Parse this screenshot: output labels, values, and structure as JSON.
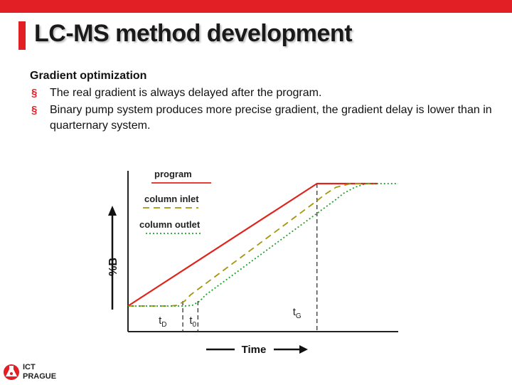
{
  "slide": {
    "title": "LC-MS method development",
    "heading": "Gradient optimization",
    "bullets": [
      "The real gradient is always delayed after the program.",
      "Binary pump system produces more precise gradient, the gradient delay is lower than in quarternary system."
    ],
    "accent_color": "#e31f26"
  },
  "logo": {
    "line1": "ICT",
    "line2": "PRAGUE",
    "icon": "flask-logo-icon"
  },
  "chart_data": {
    "type": "line",
    "title": "",
    "xlabel": "Time",
    "ylabel": "%B",
    "ylim": [
      0,
      100
    ],
    "markers": [
      {
        "name": "tD",
        "main": "t",
        "sub": "D",
        "x": 29
      },
      {
        "name": "t0",
        "main": "t",
        "sub": "0",
        "x": 37
      },
      {
        "name": "tG",
        "main": "t",
        "sub": "G",
        "x": 100
      }
    ],
    "series": [
      {
        "name": "program",
        "color": "#e0241b",
        "dash": "solid",
        "points": [
          [
            0,
            0
          ],
          [
            100,
            100
          ],
          [
            132,
            100
          ]
        ]
      },
      {
        "name": "column inlet",
        "color": "#a6950c",
        "dash": "dashed",
        "points": [
          [
            0,
            0
          ],
          [
            22,
            0
          ],
          [
            26,
            0.5
          ],
          [
            30,
            4
          ],
          [
            33,
            9
          ],
          [
            100,
            86
          ],
          [
            104,
            91
          ],
          [
            110,
            97
          ],
          [
            118,
            100
          ],
          [
            128,
            100
          ]
        ]
      },
      {
        "name": "column outlet",
        "color": "#22a02c",
        "dash": "dotted",
        "points": [
          [
            0,
            0
          ],
          [
            30,
            0
          ],
          [
            34,
            0.5
          ],
          [
            38,
            4
          ],
          [
            41,
            9
          ],
          [
            110,
            87
          ],
          [
            114,
            92
          ],
          [
            120,
            97
          ],
          [
            126,
            100
          ],
          [
            143,
            100
          ]
        ]
      }
    ],
    "legend_placement": "top-left"
  }
}
